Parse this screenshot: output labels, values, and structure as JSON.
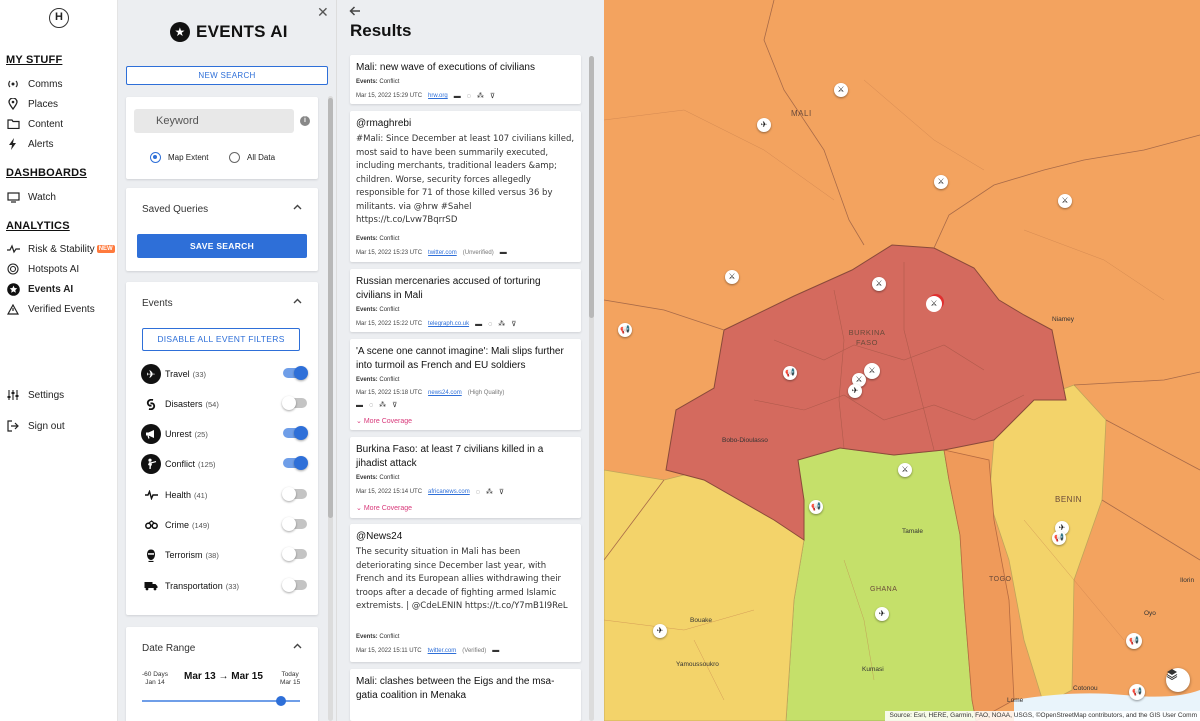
{
  "nav": {
    "logo": "H",
    "sections": {
      "my_stuff": "MY STUFF",
      "dashboards": "DASHBOARDS",
      "analytics": "ANALYTICS"
    },
    "items": {
      "comms": "Comms",
      "places": "Places",
      "content": "Content",
      "alerts": "Alerts",
      "watch": "Watch",
      "risk": "Risk & Stability",
      "risk_badge": "NEW",
      "hotspots": "Hotspots AI",
      "events_ai": "Events AI",
      "verified": "Verified Events",
      "settings": "Settings",
      "signout": "Sign out"
    }
  },
  "panel": {
    "title": "EVENTS AI",
    "new_search": "NEW SEARCH",
    "keyword_placeholder": "Keyword",
    "radio_map_extent": "Map Extent",
    "radio_all_data": "All Data",
    "saved_queries_title": "Saved Queries",
    "save_search": "SAVE SEARCH",
    "events_title": "Events",
    "disable_filters": "DISABLE ALL EVENT FILTERS",
    "events": [
      {
        "label": "Travel",
        "count": "(33)",
        "on": true
      },
      {
        "label": "Disasters",
        "count": "(54)",
        "on": false
      },
      {
        "label": "Unrest",
        "count": "(25)",
        "on": true
      },
      {
        "label": "Conflict",
        "count": "(125)",
        "on": true
      },
      {
        "label": "Health",
        "count": "(41)",
        "on": false
      },
      {
        "label": "Crime",
        "count": "(149)",
        "on": false
      },
      {
        "label": "Terrorism",
        "count": "(38)",
        "on": false
      },
      {
        "label": "Transportation",
        "count": "(33)",
        "on": false
      }
    ],
    "date_range_title": "Date Range",
    "date_left_a": "-60 Days",
    "date_left_b": "Jan 14",
    "date_range": "Mar 13 → Mar 15",
    "date_right_a": "Today",
    "date_right_b": "Mar 15"
  },
  "results": {
    "title": "Results",
    "events_label": "Events:",
    "more_coverage": "More Coverage",
    "items": [
      {
        "headline": "Mali: new wave of executions of civilians",
        "category": "Conflict",
        "time": "Mar 15, 2022 15:29 UTC",
        "source": "hrw.org"
      },
      {
        "headline": "@rmaghrebi",
        "body": "#Mali: Since December at least 107 civilians killed, most said to have been summarily executed, including merchants, traditional leaders &amp; children. Worse, security forces allegedly responsible for 71 of those killed versus 36 by militants. via @hrw #Sahel https://t.co/Lvw7BqrrSD",
        "category": "Conflict",
        "time": "Mar 15, 2022 15:23 UTC",
        "source": "twitter.com",
        "quality": "(Unverified)"
      },
      {
        "headline": "Russian mercenaries accused of torturing civilians in Mali",
        "category": "Conflict",
        "time": "Mar 15, 2022 15:22 UTC",
        "source": "telegraph.co.uk"
      },
      {
        "headline": "'A scene one cannot imagine': Mali slips further into turmoil as French and EU soldiers",
        "category": "Conflict",
        "time": "Mar 15, 2022 15:18 UTC",
        "source": "news24.com",
        "quality": "(High Quality)"
      },
      {
        "headline": "Burkina Faso: at least 7 civilians killed in a jihadist attack",
        "category": "Conflict",
        "time": "Mar 15, 2022 15:14 UTC",
        "source": "africanews.com"
      },
      {
        "headline": "@News24",
        "body": "The security situation in Mali has been deteriorating since December last year, with French and its European allies withdrawing their troops after a decade of fighting armed Islamic extremists. | @CdeLENIN https://t.co/Y7mB1I9ReL",
        "category": "Conflict",
        "time": "Mar 15, 2022 15:11 UTC",
        "source": "twitter.com",
        "quality": "(Verified)"
      },
      {
        "headline": "Mali: clashes between the Eigs and the msa-gatia coalition in Menaka"
      }
    ]
  },
  "map": {
    "countries": {
      "mali": "MALI",
      "burkina": "BURKINA FASO",
      "benin": "BENIN",
      "togo": "TOGO",
      "ghana": "GHANA"
    },
    "places": {
      "niamey": "Niamey",
      "bobo": "Bobo-Dioulasso",
      "tamale": "Tamale",
      "bouake": "Bouake",
      "yamoussoukro": "Yamoussoukro",
      "kumasi": "Kumasi",
      "lome": "Lome",
      "cotonou": "Cotonou",
      "oyo": "Oyo",
      "ilorin": "Ilorin"
    },
    "attribution": "Source: Esri, HERE, Garmin, FAO, NOAA, USGS, ©OpenStreetMap contributors, and the GIS User Comm",
    "colors": {
      "high": "#d46a5e",
      "elevated": "#ef9a5a",
      "moderate": "#f3d36a",
      "low": "#c5e06a"
    }
  }
}
